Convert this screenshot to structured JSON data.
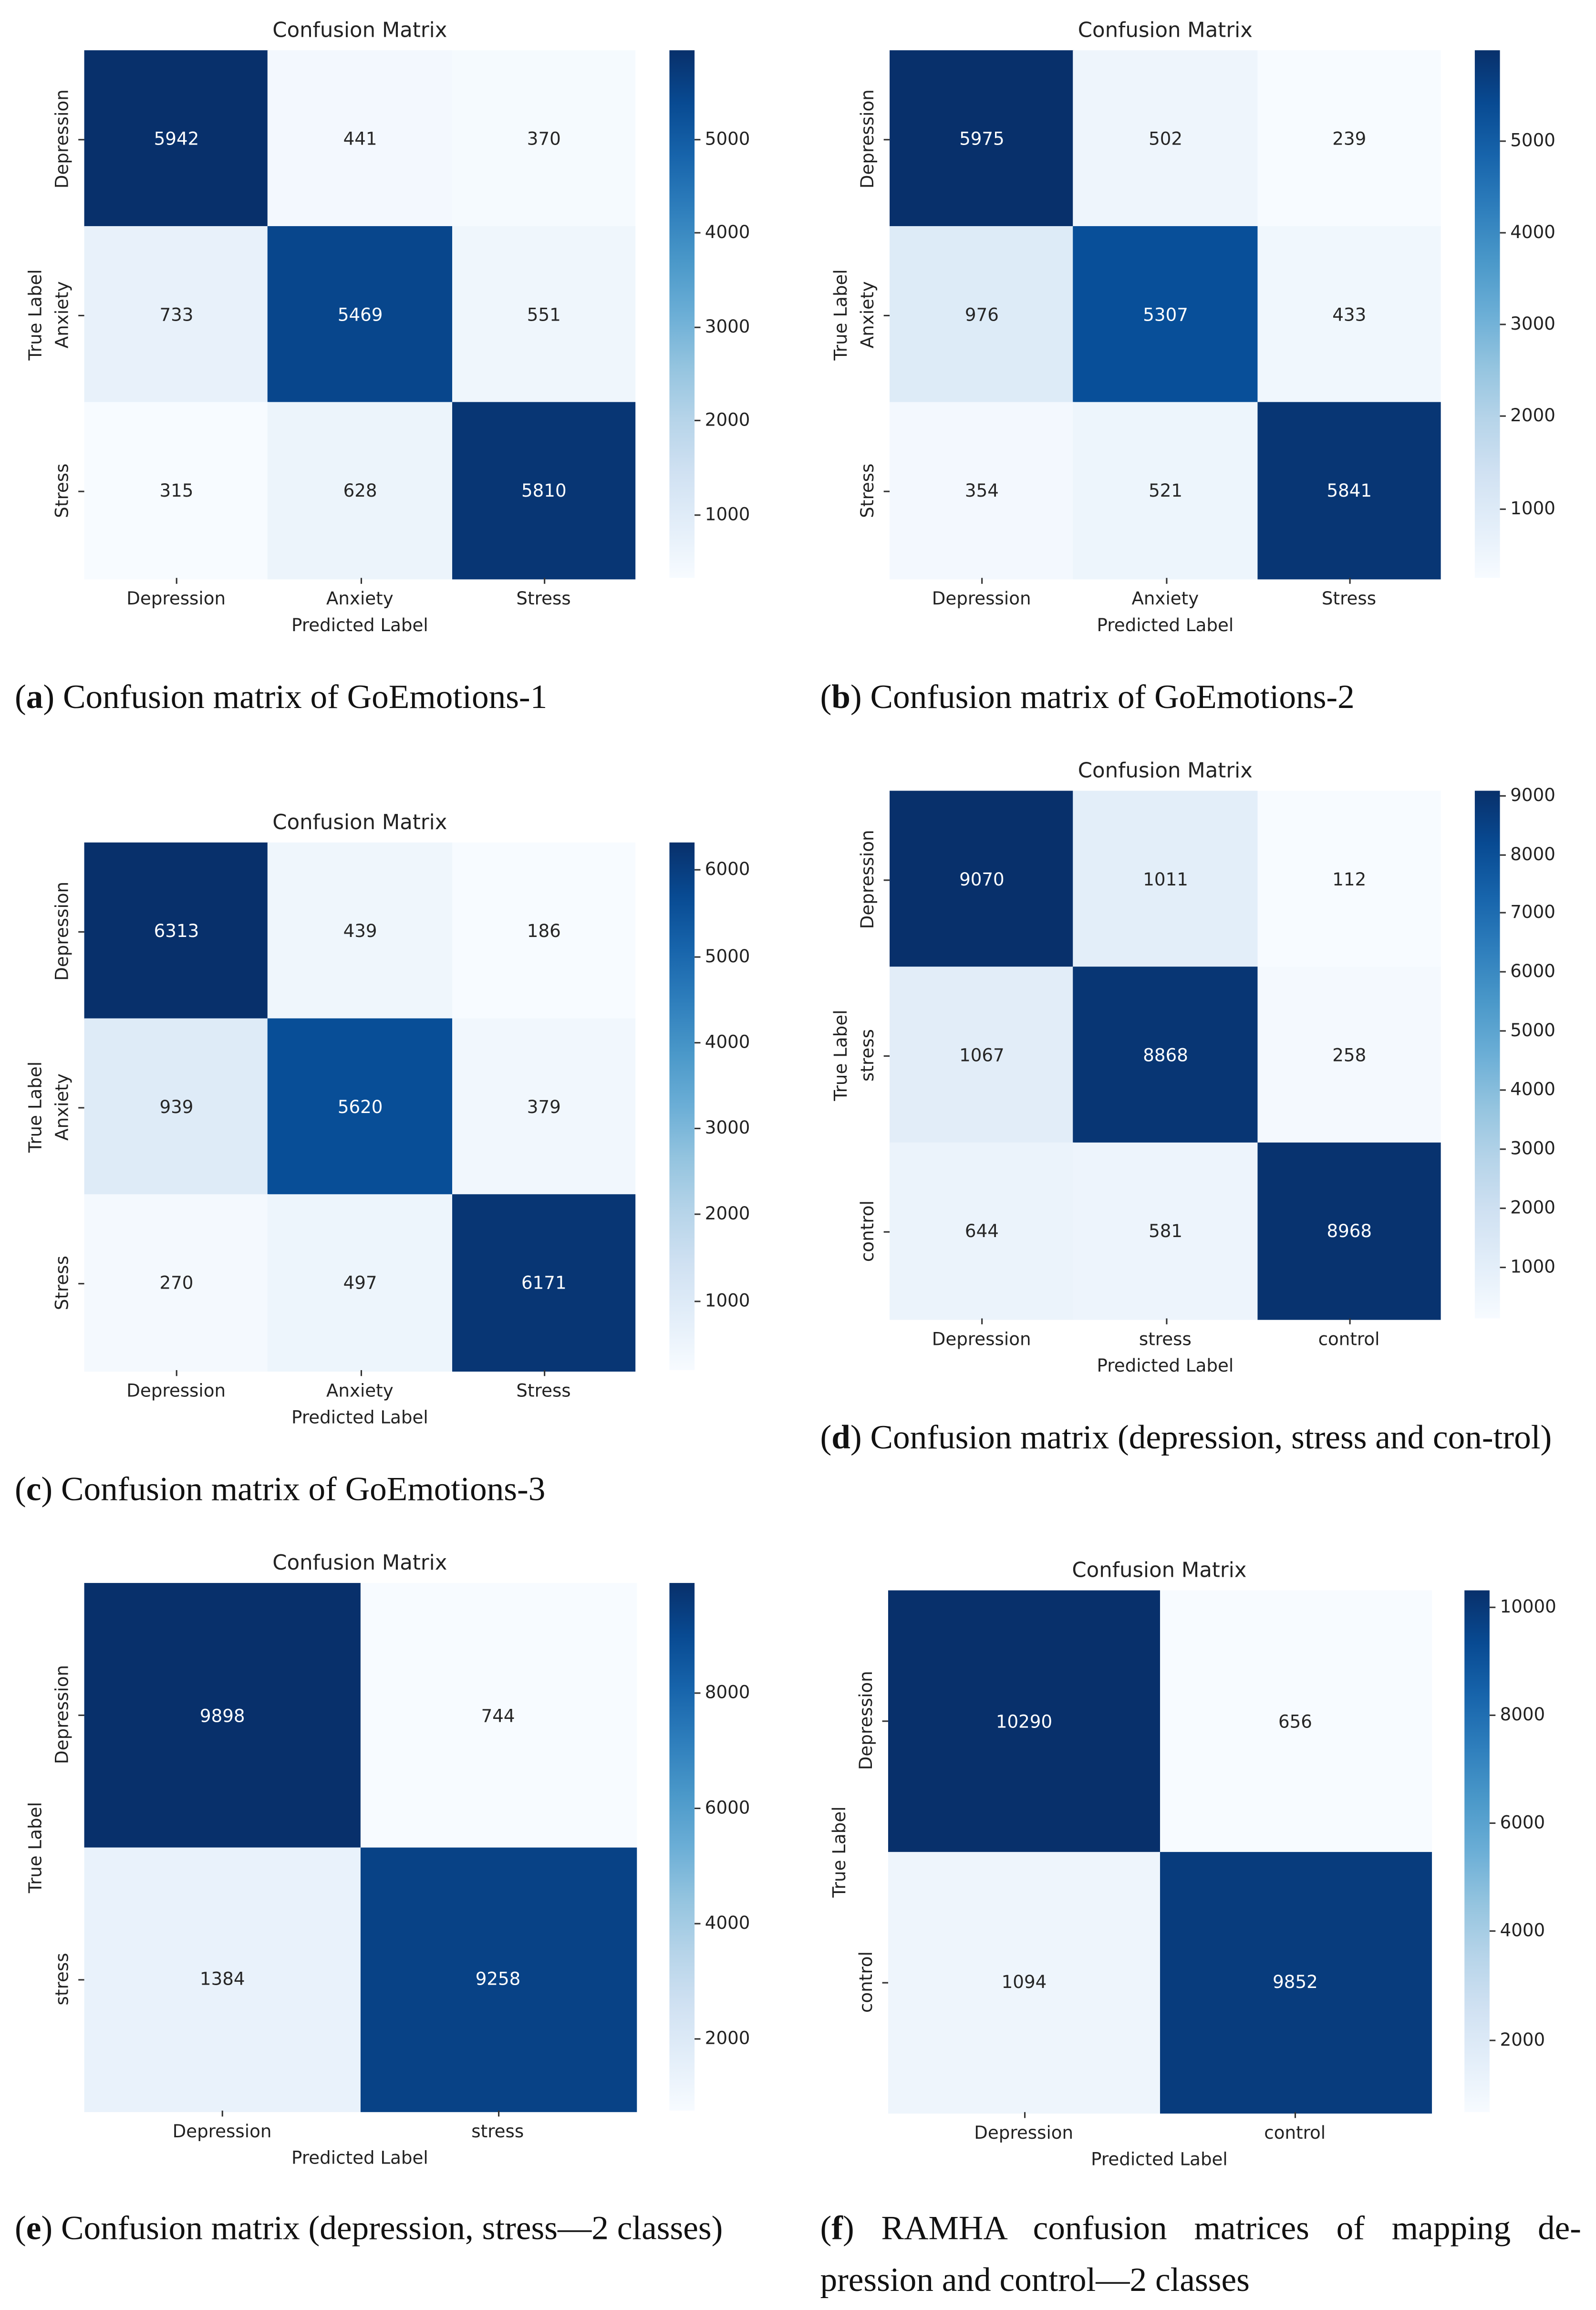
{
  "chart_data": [
    {
      "type": "heatmap",
      "title": "Confusion Matrix",
      "xlabel": "Predicted Label",
      "ylabel": "True Label",
      "x_categories": [
        "Depression",
        "Anxiety",
        "Stress"
      ],
      "y_categories": [
        "Depression",
        "Anxiety",
        "Stress"
      ],
      "values": [
        [
          5942,
          441,
          370
        ],
        [
          733,
          5469,
          551
        ],
        [
          315,
          628,
          5810
        ]
      ],
      "colormap": "Blues",
      "colorbar_ticks": [
        1000,
        2000,
        3000,
        4000,
        5000
      ],
      "caption_letter": "a",
      "caption": "Confusion matrix of GoEmotions-1"
    },
    {
      "type": "heatmap",
      "title": "Confusion Matrix",
      "xlabel": "Predicted Label",
      "ylabel": "True Label",
      "x_categories": [
        "Depression",
        "Anxiety",
        "Stress"
      ],
      "y_categories": [
        "Depression",
        "Anxiety",
        "Stress"
      ],
      "values": [
        [
          5975,
          502,
          239
        ],
        [
          976,
          5307,
          433
        ],
        [
          354,
          521,
          5841
        ]
      ],
      "colormap": "Blues",
      "colorbar_ticks": [
        1000,
        2000,
        3000,
        4000,
        5000
      ],
      "caption_letter": "b",
      "caption": "Confusion matrix of GoEmotions-2"
    },
    {
      "type": "heatmap",
      "title": "Confusion Matrix",
      "xlabel": "Predicted Label",
      "ylabel": "True Label",
      "x_categories": [
        "Depression",
        "Anxiety",
        "Stress"
      ],
      "y_categories": [
        "Depression",
        "Anxiety",
        "Stress"
      ],
      "values": [
        [
          6313,
          439,
          186
        ],
        [
          939,
          5620,
          379
        ],
        [
          270,
          497,
          6171
        ]
      ],
      "colormap": "Blues",
      "colorbar_ticks": [
        1000,
        2000,
        3000,
        4000,
        5000,
        6000
      ],
      "caption_letter": "c",
      "caption": "Confusion matrix of GoEmotions-3"
    },
    {
      "type": "heatmap",
      "title": "Confusion Matrix",
      "xlabel": "Predicted Label",
      "ylabel": "True Label",
      "x_categories": [
        "Depression",
        "stress",
        "control"
      ],
      "y_categories": [
        "Depression",
        "stress",
        "control"
      ],
      "values": [
        [
          9070,
          1011,
          112
        ],
        [
          1067,
          8868,
          258
        ],
        [
          644,
          581,
          8968
        ]
      ],
      "colormap": "Blues",
      "colorbar_ticks": [
        1000,
        2000,
        3000,
        4000,
        5000,
        6000,
        7000,
        8000,
        9000
      ],
      "caption_letter": "d",
      "caption": "Confusion matrix (depression, stress and con-trol)"
    },
    {
      "type": "heatmap",
      "title": "Confusion Matrix",
      "xlabel": "Predicted Label",
      "ylabel": "True Label",
      "x_categories": [
        "Depression",
        "stress"
      ],
      "y_categories": [
        "Depression",
        "stress"
      ],
      "values": [
        [
          9898,
          744
        ],
        [
          1384,
          9258
        ]
      ],
      "colormap": "Blues",
      "colorbar_ticks": [
        2000,
        4000,
        6000,
        8000
      ],
      "caption_letter": "e",
      "caption": "Confusion matrix (depression, stress—2 classes)"
    },
    {
      "type": "heatmap",
      "title": "Confusion Matrix",
      "xlabel": "Predicted Label",
      "ylabel": "True Label",
      "x_categories": [
        "Depression",
        "control"
      ],
      "y_categories": [
        "Depression",
        "control"
      ],
      "values": [
        [
          10290,
          656
        ],
        [
          1094,
          9852
        ]
      ],
      "colormap": "Blues",
      "colorbar_ticks": [
        2000,
        4000,
        6000,
        8000,
        10000
      ],
      "caption_letter": "f",
      "caption": "RAMHA confusion matrices of mapping de-pression and control—2 classes"
    }
  ]
}
